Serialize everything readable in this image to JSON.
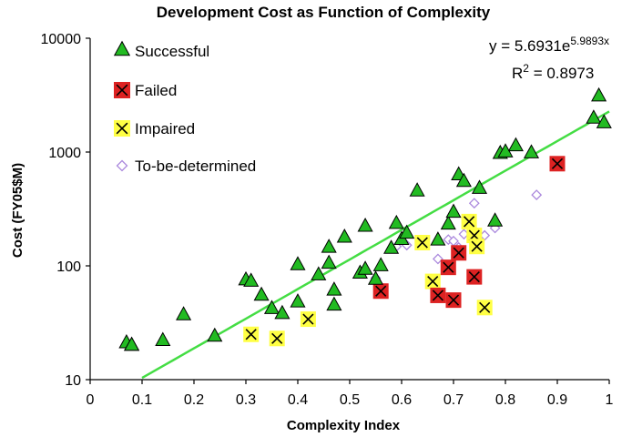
{
  "chart_data": {
    "type": "scatter",
    "title": "Development Cost as Function of Complexity",
    "xlabel": "Complexity Index",
    "ylabel": "Cost (FY05$M)",
    "xlim": [
      0,
      1
    ],
    "ylim": [
      10,
      10000
    ],
    "yscale": "log",
    "x_ticks": [
      "0",
      "0.1",
      "0.2",
      "0.3",
      "0.4",
      "0.5",
      "0.6",
      "0.7",
      "0.8",
      "0.9",
      "1"
    ],
    "y_ticks": [
      "10",
      "100",
      "1000",
      "10000"
    ],
    "legend_position": "top-left",
    "grid": false,
    "series": [
      {
        "name": "Successful",
        "marker": "triangle",
        "color": "#22bb22",
        "points": [
          [
            0.07,
            21
          ],
          [
            0.08,
            20
          ],
          [
            0.08,
            20
          ],
          [
            0.14,
            22
          ],
          [
            0.18,
            37
          ],
          [
            0.24,
            24
          ],
          [
            0.3,
            75
          ],
          [
            0.31,
            73
          ],
          [
            0.33,
            55
          ],
          [
            0.35,
            42
          ],
          [
            0.37,
            38
          ],
          [
            0.4,
            102
          ],
          [
            0.4,
            48
          ],
          [
            0.44,
            83
          ],
          [
            0.46,
            145
          ],
          [
            0.46,
            105
          ],
          [
            0.47,
            61
          ],
          [
            0.47,
            45
          ],
          [
            0.49,
            178
          ],
          [
            0.52,
            86
          ],
          [
            0.53,
            93
          ],
          [
            0.53,
            222
          ],
          [
            0.55,
            76
          ],
          [
            0.56,
            100
          ],
          [
            0.58,
            142
          ],
          [
            0.59,
            235
          ],
          [
            0.6,
            170
          ],
          [
            0.61,
            193
          ],
          [
            0.63,
            454
          ],
          [
            0.67,
            168
          ],
          [
            0.69,
            232
          ],
          [
            0.7,
            295
          ],
          [
            0.71,
            629
          ],
          [
            0.72,
            550
          ],
          [
            0.75,
            478
          ],
          [
            0.78,
            247
          ],
          [
            0.79,
            970
          ],
          [
            0.8,
            1000
          ],
          [
            0.82,
            1130
          ],
          [
            0.85,
            980
          ],
          [
            0.97,
            1980
          ],
          [
            0.98,
            3100
          ],
          [
            0.99,
            1800
          ]
        ]
      },
      {
        "name": "Failed",
        "marker": "square-x",
        "color": "#dd2222",
        "points": [
          [
            0.56,
            60
          ],
          [
            0.67,
            55
          ],
          [
            0.69,
            97
          ],
          [
            0.7,
            50
          ],
          [
            0.71,
            130
          ],
          [
            0.74,
            80
          ],
          [
            0.9,
            790
          ]
        ]
      },
      {
        "name": "Impaired",
        "marker": "square-x",
        "color": "#ffff44",
        "points": [
          [
            0.31,
            25
          ],
          [
            0.36,
            23
          ],
          [
            0.42,
            34
          ],
          [
            0.64,
            160
          ],
          [
            0.66,
            73
          ],
          [
            0.73,
            245
          ],
          [
            0.74,
            185
          ],
          [
            0.745,
            148
          ],
          [
            0.76,
            43
          ]
        ]
      },
      {
        "name": "To-be-determined",
        "marker": "diamond",
        "color": "#aa88dd",
        "points": [
          [
            0.55,
            78
          ],
          [
            0.59,
            148
          ],
          [
            0.61,
            152
          ],
          [
            0.67,
            115
          ],
          [
            0.69,
            170
          ],
          [
            0.7,
            165
          ],
          [
            0.71,
            145
          ],
          [
            0.72,
            190
          ],
          [
            0.74,
            355
          ],
          [
            0.76,
            185
          ],
          [
            0.78,
            215
          ],
          [
            0.86,
            420
          ]
        ]
      }
    ],
    "trendline": {
      "type": "exponential",
      "a": 5.6931,
      "b": 5.9893,
      "color": "#44dd44",
      "x_from": 0.1,
      "x_to": 1.0
    },
    "annotations": {
      "equation_prefix": "y = 5.6931e",
      "equation_exponent": "5.9893x",
      "r2_prefix": "R",
      "r2_sup": "2",
      "r2_suffix": " = 0.8973"
    }
  }
}
